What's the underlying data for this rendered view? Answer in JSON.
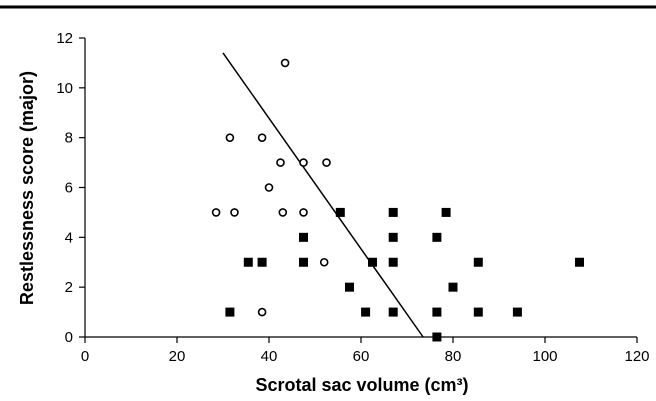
{
  "chart_data": {
    "type": "scatter",
    "title": "",
    "xlabel": "Scrotal sac volume (cm³)",
    "ylabel": "Restlessness score (major)",
    "xlim": [
      0,
      120
    ],
    "ylim": [
      0,
      12
    ],
    "x_ticks": [
      0,
      20,
      40,
      60,
      80,
      100,
      120
    ],
    "y_ticks": [
      0,
      2,
      4,
      6,
      8,
      10,
      12
    ],
    "grid": false,
    "legend": "none",
    "series": [
      {
        "marker": "open-circle",
        "color": "#000000",
        "points": [
          {
            "x": 43.5,
            "y": 11
          },
          {
            "x": 31.5,
            "y": 8
          },
          {
            "x": 38.5,
            "y": 8
          },
          {
            "x": 42.5,
            "y": 7
          },
          {
            "x": 47.5,
            "y": 7
          },
          {
            "x": 52.5,
            "y": 7
          },
          {
            "x": 40,
            "y": 6
          },
          {
            "x": 28.5,
            "y": 5
          },
          {
            "x": 32.5,
            "y": 5
          },
          {
            "x": 43,
            "y": 5
          },
          {
            "x": 47.5,
            "y": 5
          },
          {
            "x": 52,
            "y": 3
          },
          {
            "x": 38.5,
            "y": 1
          }
        ]
      },
      {
        "marker": "filled-square",
        "color": "#000000",
        "points": [
          {
            "x": 55.5,
            "y": 5
          },
          {
            "x": 67,
            "y": 5
          },
          {
            "x": 78.5,
            "y": 5
          },
          {
            "x": 47.5,
            "y": 4
          },
          {
            "x": 67,
            "y": 4
          },
          {
            "x": 76.5,
            "y": 4
          },
          {
            "x": 35.5,
            "y": 3
          },
          {
            "x": 38.5,
            "y": 3
          },
          {
            "x": 47.5,
            "y": 3
          },
          {
            "x": 62.5,
            "y": 3
          },
          {
            "x": 67,
            "y": 3
          },
          {
            "x": 85.5,
            "y": 3
          },
          {
            "x": 107.5,
            "y": 3
          },
          {
            "x": 57.5,
            "y": 2
          },
          {
            "x": 80,
            "y": 2
          },
          {
            "x": 31.5,
            "y": 1
          },
          {
            "x": 61,
            "y": 1
          },
          {
            "x": 67,
            "y": 1
          },
          {
            "x": 76.5,
            "y": 1
          },
          {
            "x": 85.5,
            "y": 1
          },
          {
            "x": 94,
            "y": 1
          },
          {
            "x": 76.5,
            "y": 0
          }
        ]
      }
    ],
    "trend_line": {
      "x": [
        30,
        73.5
      ],
      "y": [
        11.4,
        0
      ]
    }
  }
}
